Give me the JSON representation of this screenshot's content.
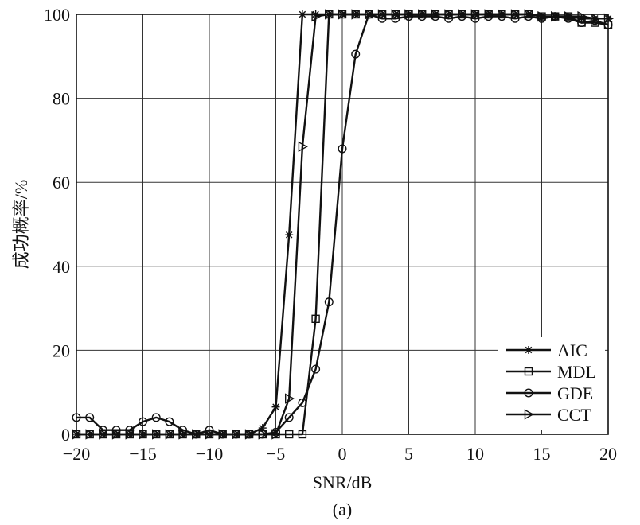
{
  "chart_data": {
    "type": "line",
    "title": "",
    "xlabel": "SNR/dB",
    "ylabel": "成功概率/%",
    "caption": "(a)",
    "xlim": [
      -20,
      20
    ],
    "ylim": [
      0,
      100
    ],
    "xticks": [
      -20,
      -15,
      -10,
      -5,
      0,
      5,
      10,
      15,
      20
    ],
    "yticks": [
      0,
      20,
      40,
      60,
      80,
      100
    ],
    "xtick_labels": [
      "−20",
      "−15",
      "−10",
      "−5",
      "0",
      "5",
      "10",
      "15",
      "20"
    ],
    "ytick_labels": [
      "0",
      "20",
      "40",
      "60",
      "80",
      "100"
    ],
    "grid": true,
    "legend_position": "lower-right",
    "x": [
      -20,
      -19,
      -18,
      -17,
      -16,
      -15,
      -14,
      -13,
      -12,
      -11,
      -10,
      -9,
      -8,
      -7,
      -6,
      -5,
      -4,
      -3,
      -2,
      -1,
      0,
      1,
      2,
      3,
      4,
      5,
      6,
      7,
      8,
      9,
      10,
      11,
      12,
      13,
      14,
      15,
      16,
      17,
      18,
      19,
      20
    ],
    "series": [
      {
        "name": "AIC",
        "marker": "star",
        "values": [
          0,
          0,
          0,
          0,
          0,
          0,
          0,
          0,
          0,
          0,
          0,
          0,
          0,
          0,
          1.5,
          6.5,
          47.5,
          100,
          100,
          100,
          100,
          100,
          100,
          100,
          100,
          100,
          100,
          100,
          100,
          100,
          100,
          100,
          100,
          100,
          100,
          99.5,
          99.5,
          99.5,
          99,
          99,
          99
        ]
      },
      {
        "name": "MDL",
        "marker": "square",
        "values": [
          0,
          0,
          0,
          0,
          0,
          0,
          0,
          0,
          0,
          0,
          0,
          0,
          0,
          0,
          0,
          0,
          0,
          0,
          27.5,
          100,
          100,
          100,
          100,
          100,
          100,
          100,
          100,
          100,
          100,
          100,
          100,
          100,
          100,
          100,
          100,
          99.5,
          99.5,
          99.5,
          98,
          98,
          97.5
        ]
      },
      {
        "name": "GDE",
        "marker": "circle",
        "values": [
          4,
          4,
          1,
          1,
          1,
          3,
          4,
          3,
          1,
          0,
          1,
          0,
          0,
          0,
          0,
          0.5,
          4,
          7.5,
          15.5,
          31.5,
          68,
          90.5,
          100,
          99,
          99,
          99.5,
          99.5,
          99.5,
          99,
          99.5,
          99,
          99.5,
          99.5,
          99,
          99.5,
          99,
          99.5,
          99,
          98,
          98.5,
          97.5
        ]
      },
      {
        "name": "CCT",
        "marker": "triangle-right",
        "values": [
          0,
          0,
          0,
          0,
          0,
          0,
          0,
          0,
          0,
          0,
          0,
          0,
          0,
          0,
          0,
          0,
          8.5,
          68.5,
          99.5,
          100,
          100,
          100,
          100,
          100,
          100,
          100,
          100,
          100,
          100,
          100,
          100,
          100,
          100,
          100,
          100,
          99.5,
          99.5,
          99.5,
          99.5,
          99,
          99
        ]
      }
    ]
  }
}
